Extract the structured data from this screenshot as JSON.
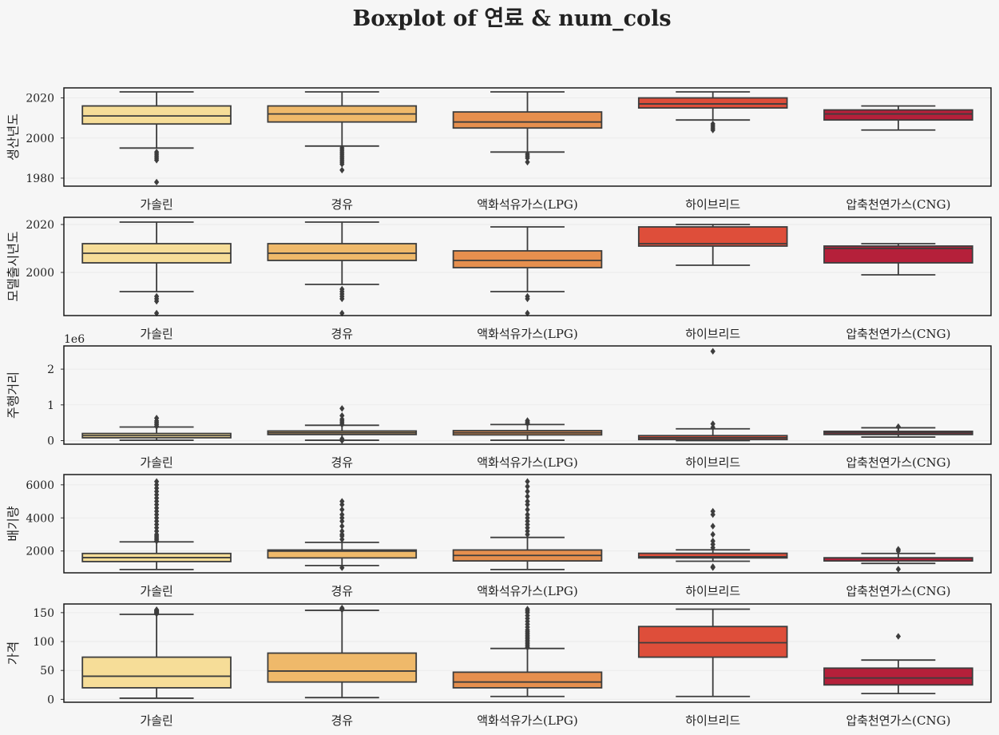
{
  "chart_data": {
    "type": "box",
    "title": "Boxplot of 연료 & num_cols",
    "categories": [
      "가솔린",
      "경유",
      "액화석유가스(LPG)",
      "하이브리드",
      "압축천연가스(CNG)"
    ],
    "colors": [
      "#f6dd98",
      "#efb96a",
      "#e68f4e",
      "#de4e3a",
      "#b5203a"
    ],
    "subplots": [
      {
        "ylabel": "생산년도",
        "ylim": [
          1976,
          2025
        ],
        "yticks": [
          1980,
          2000,
          2020
        ],
        "offset_text": "",
        "series": [
          {
            "q1": 2007,
            "median": 2011,
            "q3": 2016,
            "whisker_low": 1995,
            "whisker_high": 2023,
            "outliers": [
              1993,
              1992,
              1991,
              1990,
              1989,
              1978
            ]
          },
          {
            "q1": 2008,
            "median": 2012,
            "q3": 2016,
            "whisker_low": 1996,
            "whisker_high": 2023,
            "outliers": [
              1995,
              1994,
              1993,
              1992,
              1991,
              1990,
              1989,
              1988,
              1987,
              1984
            ]
          },
          {
            "q1": 2005,
            "median": 2008,
            "q3": 2013,
            "whisker_low": 1993,
            "whisker_high": 2023,
            "outliers": [
              1992,
              1991,
              1990,
              1988
            ]
          },
          {
            "q1": 2015,
            "median": 2017,
            "q3": 2020,
            "whisker_low": 2009,
            "whisker_high": 2023,
            "outliers": [
              2007,
              2006,
              2005,
              2004
            ]
          },
          {
            "q1": 2009,
            "median": 2012,
            "q3": 2014,
            "whisker_low": 2004,
            "whisker_high": 2016,
            "outliers": []
          }
        ]
      },
      {
        "ylabel": "모델출시년도",
        "ylim": [
          1982,
          2023
        ],
        "yticks": [
          2000,
          2020
        ],
        "offset_text": "",
        "series": [
          {
            "q1": 2004,
            "median": 2008,
            "q3": 2012,
            "whisker_low": 1992,
            "whisker_high": 2021,
            "outliers": [
              1990,
              1989,
              1988,
              1983
            ]
          },
          {
            "q1": 2005,
            "median": 2008,
            "q3": 2012,
            "whisker_low": 1995,
            "whisker_high": 2021,
            "outliers": [
              1993,
              1992,
              1991,
              1990,
              1989,
              1983
            ]
          },
          {
            "q1": 2002,
            "median": 2005,
            "q3": 2009,
            "whisker_low": 1992,
            "whisker_high": 2019,
            "outliers": [
              1990,
              1989,
              1983
            ]
          },
          {
            "q1": 2011,
            "median": 2012,
            "q3": 2019,
            "whisker_low": 2003,
            "whisker_high": 2020,
            "outliers": []
          },
          {
            "q1": 2004,
            "median": 2010,
            "q3": 2011,
            "whisker_low": 1999,
            "whisker_high": 2012,
            "outliers": []
          }
        ]
      },
      {
        "ylabel": "주행거리",
        "ylim": [
          -0.1,
          2.65
        ],
        "yticks": [
          0,
          1,
          2
        ],
        "offset_text": "1e6",
        "series": [
          {
            "q1": 0.08,
            "median": 0.14,
            "q3": 0.2,
            "whisker_low": 0.01,
            "whisker_high": 0.38,
            "outliers": [
              0.4,
              0.45,
              0.5,
              0.55,
              0.63
            ]
          },
          {
            "q1": 0.17,
            "median": 0.22,
            "q3": 0.27,
            "whisker_low": 0.01,
            "whisker_high": 0.43,
            "outliers": [
              0.0,
              0.05,
              0.45,
              0.5,
              0.55,
              0.6,
              0.7,
              0.9
            ]
          },
          {
            "q1": 0.16,
            "median": 0.22,
            "q3": 0.28,
            "whisker_low": 0.01,
            "whisker_high": 0.45,
            "outliers": [
              0.48,
              0.52,
              0.56
            ]
          },
          {
            "q1": 0.03,
            "median": 0.08,
            "q3": 0.14,
            "whisker_low": 0.0,
            "whisker_high": 0.33,
            "outliers": [
              0.37,
              0.47,
              2.5
            ]
          },
          {
            "q1": 0.17,
            "median": 0.22,
            "q3": 0.26,
            "whisker_low": 0.1,
            "whisker_high": 0.36,
            "outliers": [
              0.39
            ]
          }
        ]
      },
      {
        "ylabel": "배기량",
        "ylim": [
          680,
          6620
        ],
        "yticks": [
          2000,
          4000,
          6000
        ],
        "offset_text": "",
        "series": [
          {
            "q1": 1360,
            "median": 1600,
            "q3": 1850,
            "whisker_low": 880,
            "whisker_high": 2550,
            "outliers": [
              2600,
              2700,
              2800,
              2900,
              3000,
              3200,
              3400,
              3600,
              3800,
              4000,
              4200,
              4400,
              4600,
              4800,
              5000,
              5200,
              5400,
              5600,
              5800,
              6000,
              6200
            ]
          },
          {
            "q1": 1580,
            "median": 1990,
            "q3": 2060,
            "whisker_low": 1120,
            "whisker_high": 2520,
            "outliers": [
              990,
              2700,
              2900,
              3000,
              3200,
              3500,
              3800,
              4000,
              4200,
              4500,
              4800,
              5000
            ]
          },
          {
            "q1": 1400,
            "median": 1730,
            "q3": 2060,
            "whisker_low": 880,
            "whisker_high": 2820,
            "outliers": [
              3000,
              3200,
              3400,
              3600,
              3800,
              4000,
              4200,
              4500,
              4800,
              5000,
              5300,
              5600,
              5900,
              6200
            ]
          },
          {
            "q1": 1580,
            "median": 1650,
            "q3": 1860,
            "whisker_low": 1380,
            "whisker_high": 2070,
            "outliers": [
              1000,
              1050,
              2200,
              2400,
              2600,
              3000,
              3500,
              4200,
              4400
            ]
          },
          {
            "q1": 1400,
            "median": 1580,
            "q3": 1590,
            "whisker_low": 1250,
            "whisker_high": 1850,
            "outliers": [
              900,
              2000,
              2100
            ]
          }
        ]
      },
      {
        "ylabel": "가격",
        "ylim": [
          -5,
          165
        ],
        "yticks": [
          0,
          50,
          100,
          150
        ],
        "offset_text": "",
        "series": [
          {
            "q1": 20,
            "median": 40,
            "q3": 73,
            "whisker_low": 2,
            "whisker_high": 147,
            "outliers": [
              148,
              149,
              150,
              151,
              152,
              153,
              154,
              155
            ]
          },
          {
            "q1": 30,
            "median": 49,
            "q3": 80,
            "whisker_low": 3,
            "whisker_high": 154,
            "outliers": [
              155,
              156,
              157,
              158
            ]
          },
          {
            "q1": 20,
            "median": 30,
            "q3": 47,
            "whisker_low": 5,
            "whisker_high": 88,
            "outliers": [
              90,
              93,
              96,
              99,
              102,
              105,
              108,
              111,
              114,
              117,
              120,
              125,
              130,
              135,
              140,
              145,
              150,
              153,
              156
            ]
          },
          {
            "q1": 73,
            "median": 98,
            "q3": 126,
            "whisker_low": 5,
            "whisker_high": 156,
            "outliers": []
          },
          {
            "q1": 25,
            "median": 37,
            "q3": 54,
            "whisker_low": 10,
            "whisker_high": 68,
            "outliers": [
              109
            ]
          }
        ]
      }
    ]
  }
}
